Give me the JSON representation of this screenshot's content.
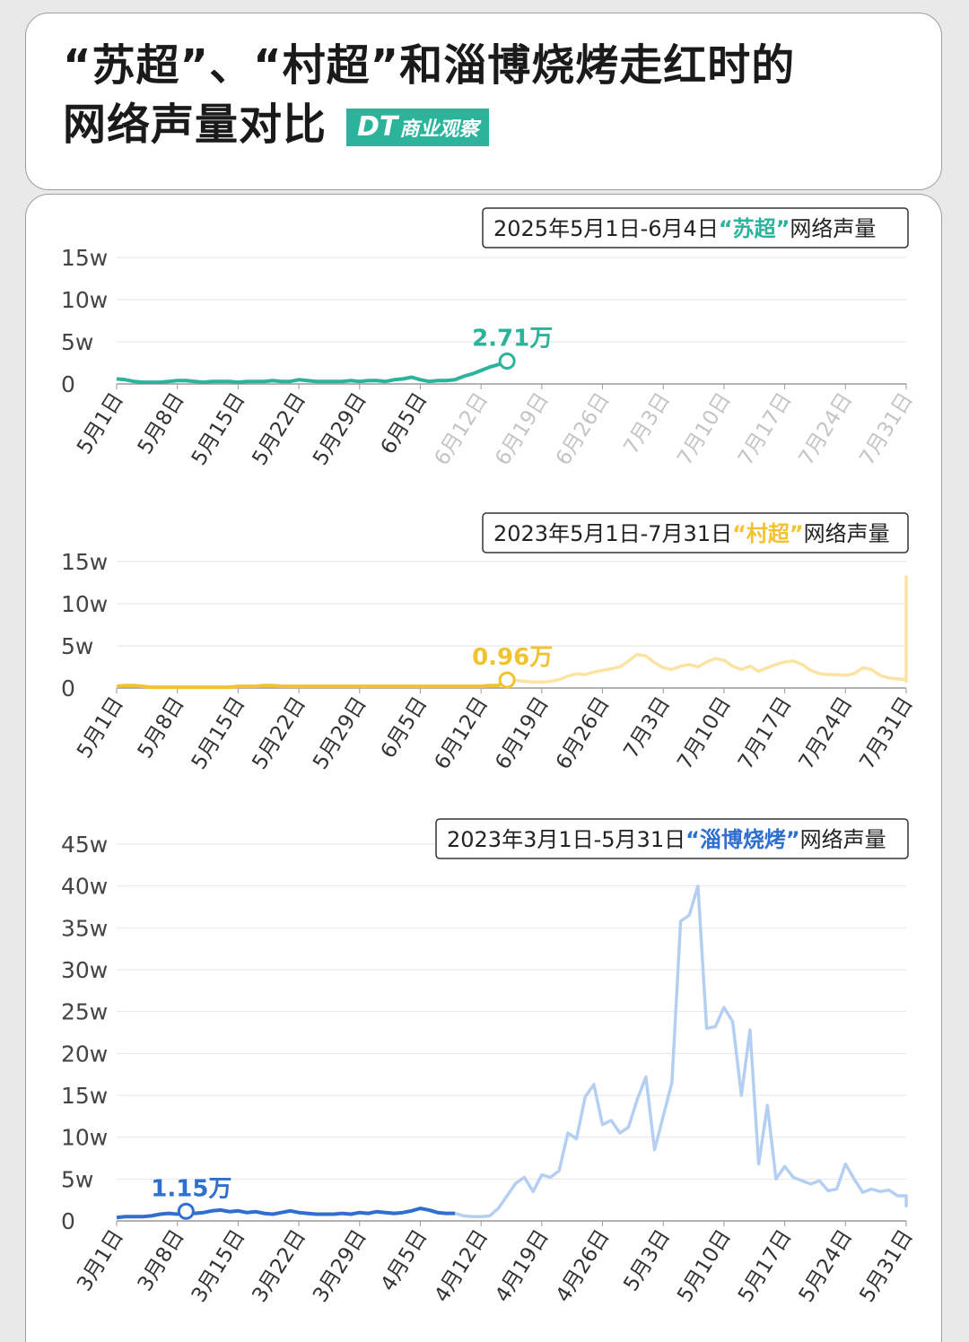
{
  "header": {
    "title_line1": "“苏超”、“村超”和淄博烧烤走红时的",
    "title_line2": "网络声量对比",
    "brand_dt": "DT",
    "brand_text": "商业观察"
  },
  "colors": {
    "su": "#2bb39c",
    "cun": "#f2c230",
    "zibo": "#2f6fcf"
  },
  "chart_data": [
    {
      "type": "line",
      "legend_prefix": "2025年5月1日-6月4日",
      "legend_highlight": "“苏超”",
      "legend_suffix": "网络声量",
      "color": "#2bb39c",
      "faded_color": "#a9e2d8",
      "y_ticks": [
        "0",
        "5w",
        "10w",
        "15w"
      ],
      "ylim": [
        0,
        15
      ],
      "y_unit": "万",
      "x_ticks": [
        "5月1日",
        "5月8日",
        "5月15日",
        "5月22日",
        "5月29日",
        "6月5日",
        "6月12日",
        "6月19日",
        "6月26日",
        "7月3日",
        "7月10日",
        "7月17日",
        "7月24日",
        "7月31日"
      ],
      "x_tick_active_count": 6,
      "total_days": 92,
      "values": [
        0.6,
        0.5,
        0.3,
        0.2,
        0.2,
        0.2,
        0.3,
        0.4,
        0.4,
        0.3,
        0.2,
        0.3,
        0.3,
        0.3,
        0.2,
        0.3,
        0.3,
        0.3,
        0.4,
        0.3,
        0.3,
        0.5,
        0.4,
        0.3,
        0.3,
        0.3,
        0.3,
        0.4,
        0.3,
        0.4,
        0.4,
        0.3,
        0.5,
        0.6,
        0.8,
        0.5,
        0.3,
        0.4,
        0.4,
        0.5,
        0.9,
        1.2,
        1.6,
        2.0,
        2.3,
        2.71
      ],
      "annotation": "2.71万",
      "annotation_index": 45,
      "faded_values": []
    },
    {
      "type": "line",
      "legend_prefix": "2023年5月1日-7月31日",
      "legend_highlight": "“村超”",
      "legend_suffix": "网络声量",
      "color": "#f2c230",
      "faded_color": "#fbe3a2",
      "y_ticks": [
        "0",
        "5w",
        "10w",
        "15w"
      ],
      "ylim": [
        0,
        15
      ],
      "y_unit": "万",
      "x_ticks": [
        "5月1日",
        "5月8日",
        "5月15日",
        "5月22日",
        "5月29日",
        "6月5日",
        "6月12日",
        "6月19日",
        "6月26日",
        "7月3日",
        "7月10日",
        "7月17日",
        "7月24日",
        "7月31日"
      ],
      "x_tick_active_count": 14,
      "total_days": 92,
      "values": [
        0.2,
        0.3,
        0.3,
        0.2,
        0.1,
        0.1,
        0.1,
        0.1,
        0.1,
        0.1,
        0.1,
        0.1,
        0.1,
        0.1,
        0.2,
        0.2,
        0.2,
        0.3,
        0.3,
        0.2,
        0.2,
        0.2,
        0.2,
        0.2,
        0.2,
        0.2,
        0.2,
        0.2,
        0.2,
        0.2,
        0.2,
        0.2,
        0.2,
        0.2,
        0.2,
        0.2,
        0.2,
        0.2,
        0.2,
        0.2,
        0.2,
        0.2,
        0.2,
        0.3,
        0.3,
        0.96
      ],
      "annotation": "0.96万",
      "annotation_index": 45,
      "faded_values": [
        0.96,
        0.9,
        0.8,
        0.7,
        0.7,
        0.8,
        1.0,
        1.4,
        1.7,
        1.6,
        1.9,
        2.1,
        2.3,
        2.5,
        3.2,
        4.0,
        3.8,
        3.0,
        2.4,
        2.2,
        2.6,
        2.8,
        2.5,
        3.1,
        3.5,
        3.3,
        2.6,
        2.2,
        2.6,
        2.0,
        2.4,
        2.8,
        3.1,
        3.2,
        2.8,
        2.1,
        1.7,
        1.6,
        1.6,
        1.5,
        1.7,
        2.4,
        2.2,
        1.5,
        1.2,
        1.1,
        1.0,
        1.2,
        1.5,
        1.9,
        1.7,
        1.1,
        0.8,
        0.8,
        0.9,
        1.0,
        1.3,
        1.6,
        1.4,
        1.5,
        1.3,
        1.2,
        1.8,
        1.6,
        2.2,
        2.6,
        13.2,
        3.0
      ]
    },
    {
      "type": "line",
      "legend_prefix": "2023年3月1日-5月31日",
      "legend_highlight": "“淄博烧烤”",
      "legend_suffix": "网络声量",
      "color": "#2f6fcf",
      "faded_color": "#b5cff2",
      "y_ticks": [
        "0",
        "5w",
        "10w",
        "15w",
        "20w",
        "25w",
        "30w",
        "35w",
        "40w",
        "45w"
      ],
      "ylim": [
        0,
        45
      ],
      "y_unit": "万",
      "x_ticks": [
        "3月1日",
        "3月8日",
        "3月15日",
        "3月22日",
        "3月29日",
        "4月5日",
        "4月12日",
        "4月19日",
        "4月26日",
        "5月3日",
        "5月10日",
        "5月17日",
        "5月24日",
        "5月31日"
      ],
      "x_tick_active_count": 14,
      "total_days": 92,
      "values": [
        0.4,
        0.5,
        0.5,
        0.5,
        0.6,
        0.8,
        0.9,
        0.8,
        1.15,
        0.9,
        1.0,
        1.2,
        1.3,
        1.1,
        1.2,
        1.0,
        1.1,
        0.9,
        0.8,
        1.0,
        1.2,
        1.0,
        0.9,
        0.8,
        0.8,
        0.8,
        0.9,
        0.8,
        1.0,
        0.9,
        1.1,
        1.0,
        0.9,
        1.0,
        1.2,
        1.5,
        1.3,
        1.0,
        0.9,
        0.9
      ],
      "annotation": "1.15万",
      "annotation_index": 8,
      "faded_values": [
        0.9,
        0.6,
        0.5,
        0.5,
        0.6,
        1.5,
        3.0,
        4.5,
        5.2,
        3.5,
        5.5,
        5.2,
        6.0,
        10.5,
        9.8,
        14.8,
        16.3,
        11.5,
        12.0,
        10.5,
        11.2,
        14.5,
        17.2,
        8.5,
        12.5,
        16.5,
        35.8,
        36.5,
        40.0,
        23.0,
        23.2,
        25.5,
        23.8,
        15.0,
        22.8,
        6.8,
        13.8,
        5.0,
        6.5,
        5.2,
        4.8,
        4.4,
        4.8,
        3.6,
        3.8,
        6.8,
        5.0,
        3.4,
        3.8,
        3.5,
        3.7,
        3.0,
        3.0,
        2.0,
        2.4,
        2.4,
        2.1,
        2.0,
        1.9,
        1.8,
        1.8,
        2.0
      ]
    }
  ]
}
